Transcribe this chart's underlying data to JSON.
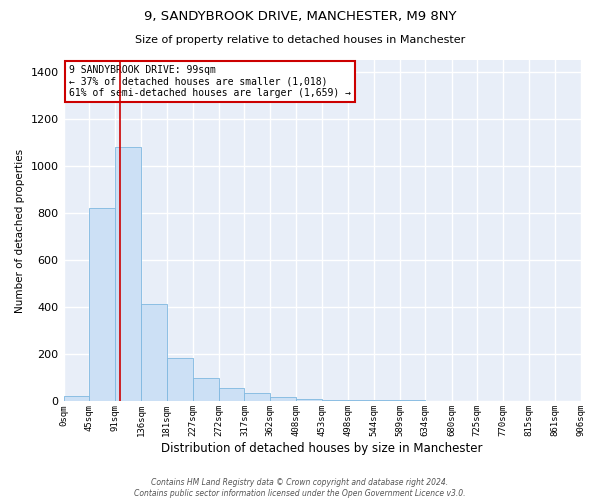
{
  "title1": "9, SANDYBROOK DRIVE, MANCHESTER, M9 8NY",
  "title2": "Size of property relative to detached houses in Manchester",
  "xlabel": "Distribution of detached houses by size in Manchester",
  "ylabel": "Number of detached properties",
  "bar_color": "#cce0f5",
  "bar_edge_color": "#7fb8e0",
  "bg_color": "#e8eef8",
  "grid_color": "#ffffff",
  "red_line_x": 99,
  "annotation_text": "9 SANDYBROOK DRIVE: 99sqm\n← 37% of detached houses are smaller (1,018)\n61% of semi-detached houses are larger (1,659) →",
  "annotation_box_color": "#ffffff",
  "annotation_box_edge": "#cc0000",
  "footnote": "Contains HM Land Registry data © Crown copyright and database right 2024.\nContains public sector information licensed under the Open Government Licence v3.0.",
  "bin_edges": [
    0,
    45,
    91,
    136,
    181,
    227,
    272,
    317,
    362,
    408,
    453,
    498,
    544,
    589,
    634,
    680,
    725,
    770,
    815,
    861,
    906
  ],
  "bin_counts": [
    25,
    820,
    1080,
    415,
    185,
    100,
    55,
    35,
    20,
    10,
    8,
    6,
    5,
    4,
    3,
    2,
    2,
    2,
    1,
    1
  ],
  "ylim": [
    0,
    1450
  ],
  "xlim": [
    0,
    906
  ],
  "xtick_labels": [
    "0sqm",
    "45sqm",
    "91sqm",
    "136sqm",
    "181sqm",
    "227sqm",
    "272sqm",
    "317sqm",
    "362sqm",
    "408sqm",
    "453sqm",
    "498sqm",
    "544sqm",
    "589sqm",
    "634sqm",
    "680sqm",
    "725sqm",
    "770sqm",
    "815sqm",
    "861sqm",
    "906sqm"
  ],
  "xtick_positions": [
    0,
    45,
    91,
    136,
    181,
    227,
    272,
    317,
    362,
    408,
    453,
    498,
    544,
    589,
    634,
    680,
    725,
    770,
    815,
    861,
    906
  ],
  "fig_bg": "#ffffff",
  "title1_fontsize": 9.5,
  "title2_fontsize": 8,
  "ylabel_fontsize": 7.5,
  "xlabel_fontsize": 8.5,
  "ytick_fontsize": 8,
  "xtick_fontsize": 6.5
}
